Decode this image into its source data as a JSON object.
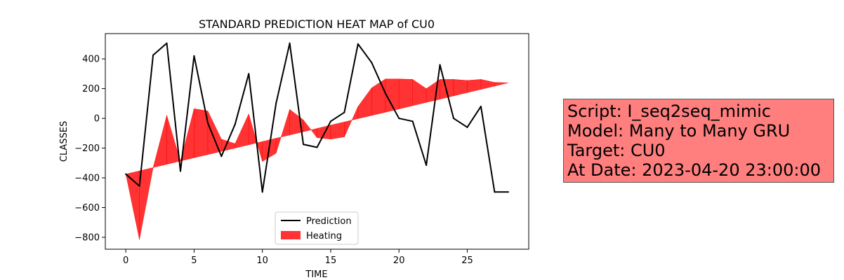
{
  "chart_data": {
    "type": "line",
    "title": "STANDARD PREDICTION HEAT MAP of CU0",
    "xlabel": "TIME",
    "ylabel": "CLASSES",
    "xlim": [
      -1.5,
      29.5
    ],
    "ylim": [
      -880,
      570
    ],
    "x_ticks": [
      0,
      5,
      10,
      15,
      20,
      25
    ],
    "y_ticks": [
      -800,
      -600,
      -400,
      -200,
      0,
      200,
      400
    ],
    "grid": false,
    "legend_position": "lower-center",
    "series": [
      {
        "name": "Prediction",
        "kind": "line",
        "color": "#000000",
        "x": [
          0,
          1,
          2,
          3,
          4,
          5,
          6,
          7,
          8,
          9,
          10,
          11,
          12,
          13,
          14,
          15,
          16,
          17,
          18,
          19,
          20,
          21,
          22,
          23,
          24,
          25,
          26,
          27,
          28
        ],
        "values": [
          -375,
          -455,
          425,
          505,
          -355,
          420,
          -30,
          -255,
          -40,
          300,
          -495,
          100,
          505,
          -175,
          -195,
          -20,
          40,
          500,
          375,
          170,
          0,
          -20,
          -315,
          360,
          0,
          -60,
          80,
          -495,
          -495
        ]
      },
      {
        "name": "Heating",
        "kind": "area",
        "color": "#ff0000",
        "opacity": 0.8,
        "x": [
          0,
          1,
          2,
          3,
          4,
          5,
          6,
          7,
          8,
          9,
          10,
          11,
          12,
          13,
          14,
          15,
          16,
          17,
          18,
          19,
          20,
          21,
          22,
          23,
          24,
          25,
          26,
          27,
          28
        ],
        "baseline": [
          -375,
          -353,
          -331,
          -309,
          -287,
          -265,
          -244,
          -222,
          -200,
          -178,
          -156,
          -134,
          -112,
          -90,
          -68,
          -46,
          -24,
          -2,
          19,
          41,
          63,
          85,
          107,
          129,
          151,
          173,
          195,
          217,
          239
        ],
        "values": [
          -375,
          -815,
          -331,
          20,
          -287,
          65,
          50,
          -140,
          -170,
          30,
          -290,
          -235,
          60,
          -10,
          -130,
          -140,
          -125,
          80,
          205,
          265,
          265,
          262,
          200,
          262,
          262,
          255,
          262,
          242,
          239
        ]
      }
    ]
  },
  "info_box": {
    "background": "#ff7f7f",
    "lines": [
      "Script: I_seq2seq_mimic",
      "Model: Many to Many GRU",
      "Target: CU0",
      "At Date: 2023-04-20 23:00:00"
    ]
  }
}
